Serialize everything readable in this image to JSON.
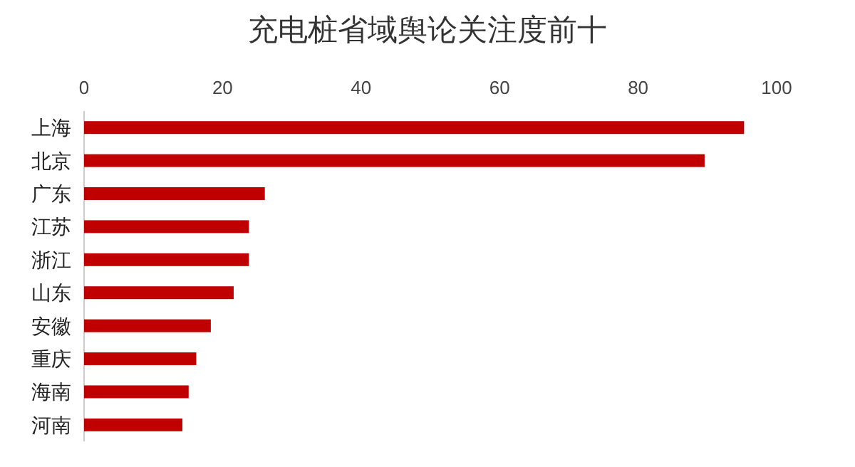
{
  "chart_data": {
    "type": "bar",
    "title": "充电桩省域舆论关注度前十",
    "orientation": "horizontal",
    "categories": [
      "上海",
      "北京",
      "广东",
      "江苏",
      "浙江",
      "山东",
      "安徽",
      "重庆",
      "海南",
      "河南"
    ],
    "values": [
      95.3,
      89.6,
      26.1,
      23.8,
      23.8,
      21.6,
      18.3,
      16.2,
      15.1,
      14.2
    ],
    "color": "#c00000",
    "xlim": [
      0,
      100
    ],
    "xticks": [
      0,
      20,
      40,
      60,
      80,
      100
    ],
    "grid": false
  }
}
